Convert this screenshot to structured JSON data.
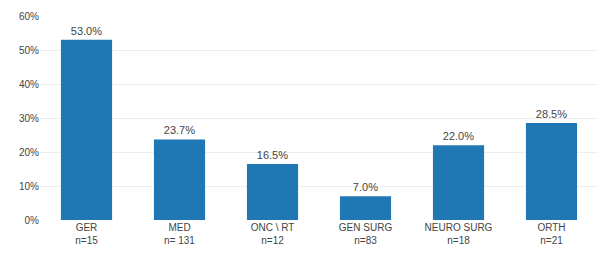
{
  "chart_data": {
    "type": "bar",
    "categories": [
      "GER\nn=15",
      "MED\nn= 131",
      "ONC \\ RT\nn=12",
      "GEN SURG\nn=83",
      "NEURO SURG\nn=18",
      "ORTH\nn=21"
    ],
    "values": [
      53.0,
      23.7,
      16.5,
      7.0,
      22.0,
      28.5
    ],
    "value_labels": [
      "53.0%",
      "23.7%",
      "16.5%",
      "7.0%",
      "22.0%",
      "28.5%"
    ],
    "data_labels": true,
    "ylim": [
      0,
      60
    ],
    "yticks": [
      {
        "value": 0,
        "label": "0%"
      },
      {
        "value": 10,
        "label": "10%"
      },
      {
        "value": 20,
        "label": "20%"
      },
      {
        "value": 30,
        "label": "30%"
      },
      {
        "value": 40,
        "label": "40%"
      },
      {
        "value": 50,
        "label": "50%"
      },
      {
        "value": 60,
        "label": "60%"
      }
    ],
    "grid": true
  }
}
